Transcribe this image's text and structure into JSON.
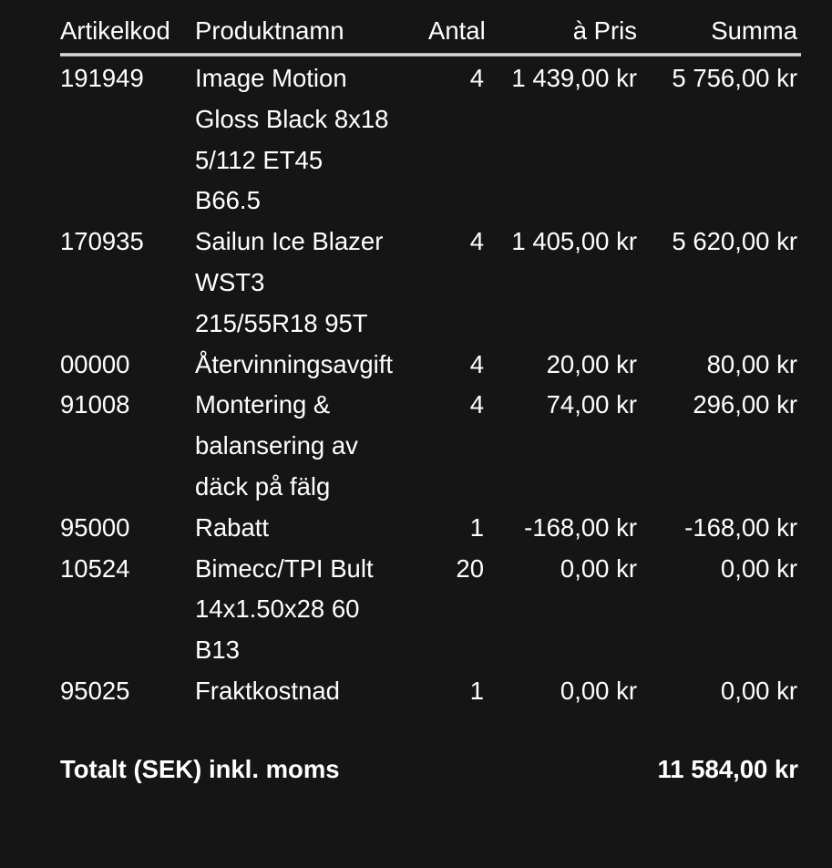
{
  "headers": {
    "code": "Artikelkod",
    "name": "Produktnamn",
    "qty": "Antal",
    "price": "à Pris",
    "sum": "Summa"
  },
  "rows": [
    {
      "code": "191949",
      "name": [
        "Image Motion",
        "Gloss Black 8x18",
        "5/112 ET45",
        "B66.5"
      ],
      "qty": "4",
      "price": "1 439,00 kr",
      "sum": "5 756,00 kr"
    },
    {
      "code": "170935",
      "name": [
        "Sailun Ice Blazer",
        "WST3",
        "215/55R18 95T"
      ],
      "qty": "4",
      "price": "1 405,00 kr",
      "sum": "5 620,00 kr"
    },
    {
      "code": "00000",
      "name": [
        "Återvinningsavgift"
      ],
      "qty": "4",
      "price": "20,00 kr",
      "sum": "80,00 kr"
    },
    {
      "code": "91008",
      "name": [
        "Montering &",
        "balansering av",
        "däck på fälg"
      ],
      "qty": "4",
      "price": "74,00 kr",
      "sum": "296,00 kr"
    },
    {
      "code": "95000",
      "name": [
        "Rabatt"
      ],
      "qty": "1",
      "price": "-168,00 kr",
      "sum": "-168,00 kr"
    },
    {
      "code": "10524",
      "name": [
        "Bimecc/TPI Bult",
        "14x1.50x28 60",
        "B13"
      ],
      "qty": "20",
      "price": "0,00 kr",
      "sum": "0,00 kr"
    },
    {
      "code": "95025",
      "name": [
        "Fraktkostnad"
      ],
      "qty": "1",
      "price": "0,00 kr",
      "sum": "0,00 kr"
    }
  ],
  "total": {
    "label": "Totalt (SEK) inkl. moms",
    "value": "11 584,00 kr"
  }
}
